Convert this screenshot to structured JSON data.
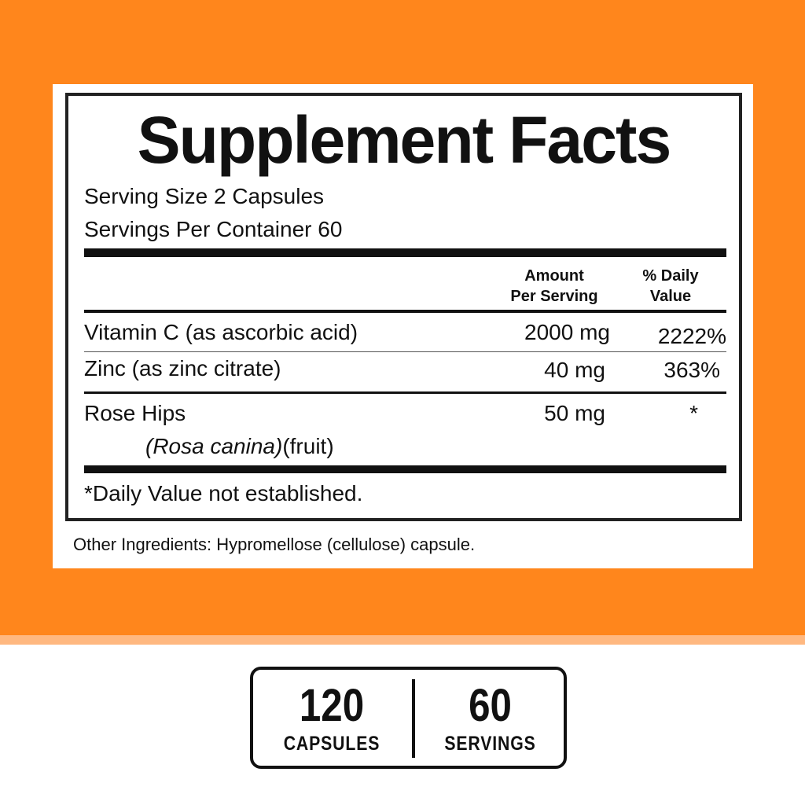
{
  "colors": {
    "background": "#FF861C",
    "band": "#FFB880"
  },
  "facts": {
    "title": "Supplement Facts",
    "serving_size": "Serving Size 2 Capsules",
    "servings_per_container": "Servings Per Container 60",
    "header": {
      "amount_1": "Amount",
      "amount_2": "Per Serving",
      "dv_1": "% Daily",
      "dv_2": "Value"
    },
    "rows": [
      {
        "name": "Vitamin C (as ascorbic acid)",
        "amount": "2000 mg",
        "dv": "2222%"
      },
      {
        "name": "Zinc (as zinc citrate)",
        "amount": "40 mg",
        "dv": "363%"
      },
      {
        "name": "Rose Hips",
        "sub_italic": "(Rosa canina)",
        "sub": "(fruit)",
        "amount": "50 mg",
        "dv": "*"
      }
    ],
    "footnote": "*Daily Value not established."
  },
  "other_ingredients": "Other Ingredients: Hypromellose (cellulose) capsule.",
  "count": {
    "capsules_num": "120",
    "capsules_label": "CAPSULES",
    "servings_num": "60",
    "servings_label": "SERVINGS"
  }
}
